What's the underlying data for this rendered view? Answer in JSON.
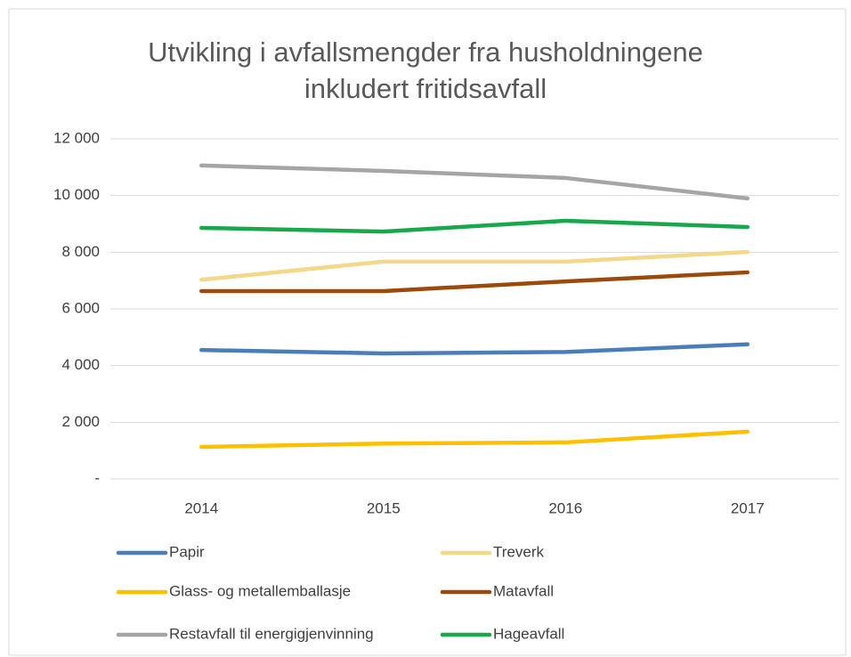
{
  "chart_data": {
    "type": "line",
    "title": "Utvikling i avfallsmengder fra husholdningene inkludert fritidsavfall",
    "categories": [
      "2014",
      "2015",
      "2016",
      "2017"
    ],
    "series": [
      {
        "name": "Papir",
        "color": "#4a7ebb",
        "values": [
          4550,
          4430,
          4480,
          4750
        ]
      },
      {
        "name": "Treverk",
        "color": "#f3d88a",
        "values": [
          7030,
          7670,
          7670,
          8010
        ]
      },
      {
        "name": "Glass- og metallemballasje",
        "color": "#ffc000",
        "values": [
          1130,
          1250,
          1290,
          1670
        ]
      },
      {
        "name": "Matavfall",
        "color": "#9c4a0c",
        "values": [
          6630,
          6630,
          6970,
          7290
        ]
      },
      {
        "name": "Restavfall til energigjenvinning",
        "color": "#a5a5a5",
        "values": [
          11060,
          10870,
          10620,
          9900
        ]
      },
      {
        "name": "Hageavfall",
        "color": "#18a84b",
        "values": [
          8860,
          8730,
          9110,
          8890
        ]
      }
    ],
    "ylim": [
      0,
      12000
    ],
    "yticks": [
      {
        "value": 0,
        "label": "-"
      },
      {
        "value": 2000,
        "label": "2 000"
      },
      {
        "value": 4000,
        "label": "4 000"
      },
      {
        "value": 6000,
        "label": "6 000"
      },
      {
        "value": 8000,
        "label": "8 000"
      },
      {
        "value": 10000,
        "label": "10 000"
      },
      {
        "value": 12000,
        "label": "12 000"
      }
    ],
    "grid": true,
    "legend": "bottom"
  }
}
